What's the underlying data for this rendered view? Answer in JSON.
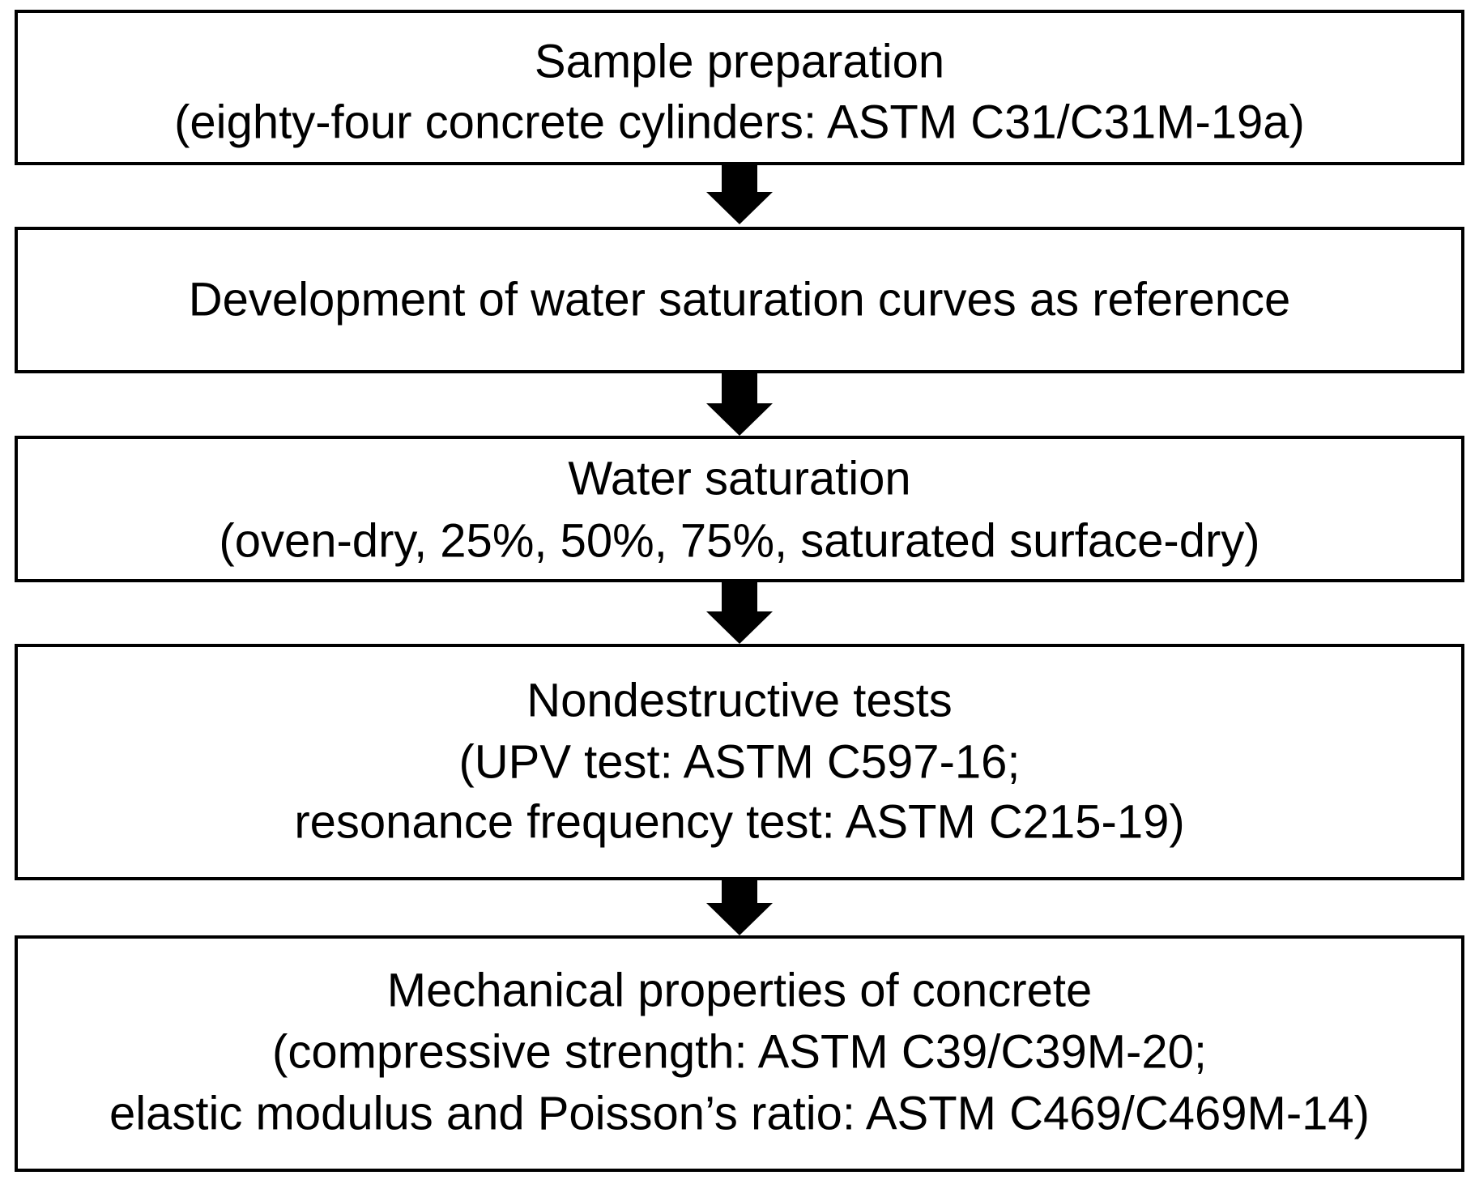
{
  "nodes": [
    {
      "lines": [
        "Sample preparation",
        "(eighty-four concrete cylinders: ASTM C31/C31M-19a)"
      ]
    },
    {
      "lines": [
        "Development of water saturation curves as reference"
      ]
    },
    {
      "lines": [
        "Water saturation",
        "(oven-dry, 25%, 50%, 75%, saturated surface-dry)"
      ]
    },
    {
      "lines": [
        "Nondestructive tests",
        "(UPV test: ASTM C597-16;",
        "resonance frequency test: ASTM C215-19)"
      ]
    },
    {
      "lines": [
        "Mechanical properties of concrete",
        "(compressive strength: ASTM C39/C39M-20;",
        "elastic modulus and Poisson’s ratio: ASTM C469/C469M-14)"
      ]
    }
  ]
}
